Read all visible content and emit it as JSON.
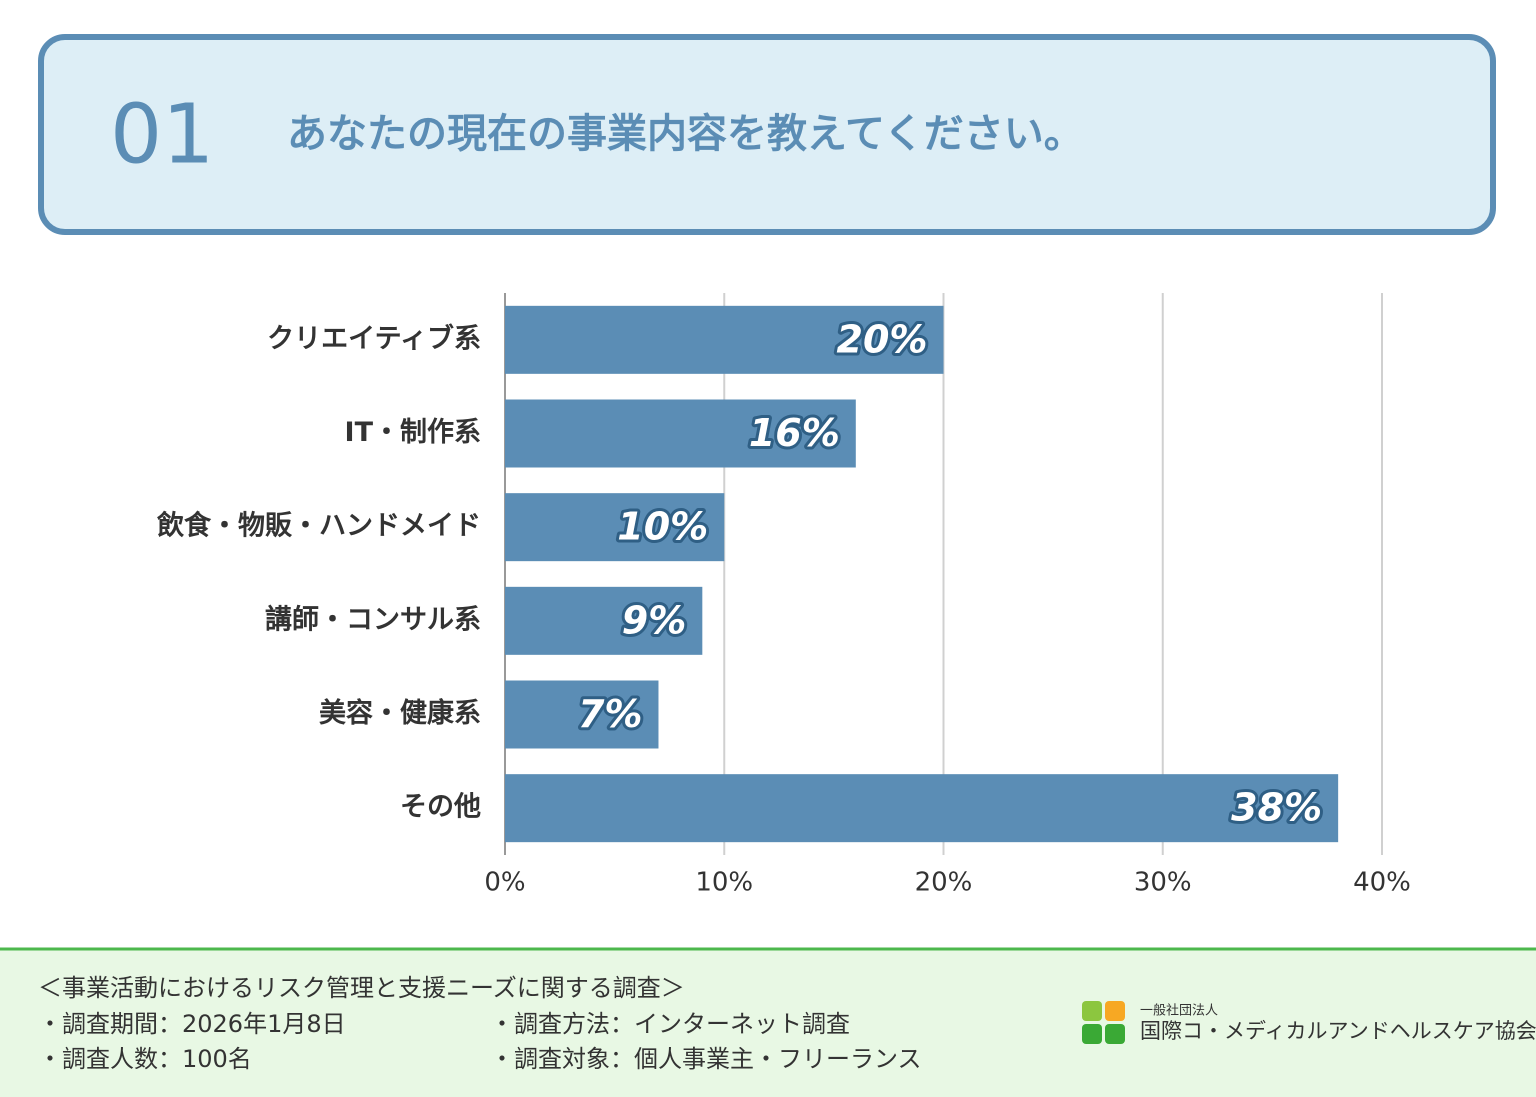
{
  "header": {
    "number": "01",
    "question": "あなたの現在の事業内容を教えてください。"
  },
  "chart_data": {
    "type": "barh",
    "categories": [
      "クリエイティブ系",
      "IT・制作系",
      "飲食・物販・ハンドメイド",
      "講師・コンサル系",
      "美容・健康系",
      "その他"
    ],
    "values": [
      20,
      16,
      10,
      9,
      7,
      38
    ],
    "value_labels": [
      "20%",
      "16%",
      "10%",
      "9%",
      "7%",
      "38%"
    ],
    "color": "#5b8db5",
    "xlim": [
      0,
      40
    ],
    "xticks": [
      {
        "value": 0,
        "label": "0%"
      },
      {
        "value": 10,
        "label": "10%"
      },
      {
        "value": 20,
        "label": "20%"
      },
      {
        "value": 30,
        "label": "30%"
      },
      {
        "value": 40,
        "label": "40%"
      }
    ],
    "grid": true
  },
  "footer": {
    "survey_title": "＜事業活動におけるリスク管理と支援ニーズに関する調査＞",
    "left_items": [
      "・調査期間：2026年1月8日",
      "・調査人数：100名"
    ],
    "right_items": [
      "・調査方法：インターネット調査",
      "・調査対象：個人事業主・フリーランス"
    ],
    "org_small": "一般社団法人",
    "org_name": "国際コ・メディカルアンドヘルスケア協会"
  }
}
